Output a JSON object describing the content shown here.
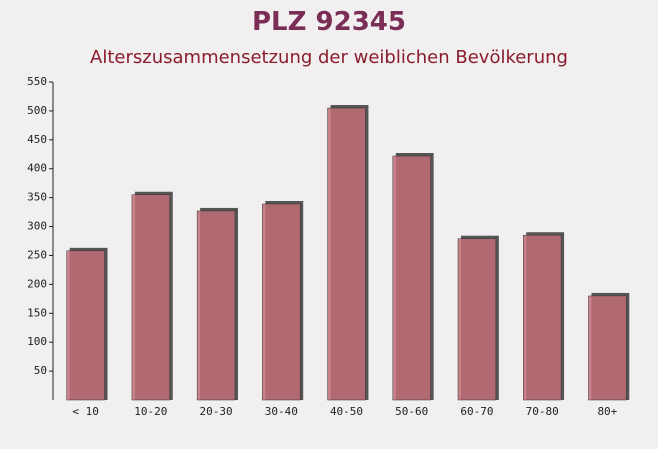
{
  "chart_data": {
    "type": "bar",
    "title": "PLZ 92345",
    "subtitle": "Alterszusammensetzung der weiblichen Bevölkerung",
    "categories": [
      "< 10",
      "10-20",
      "20-30",
      "30-40",
      "40-50",
      "50-60",
      "60-70",
      "70-80",
      "80+"
    ],
    "values": [
      258,
      355,
      327,
      339,
      505,
      422,
      279,
      285,
      180
    ],
    "color": "#c26d78",
    "ylim": [
      0,
      550
    ],
    "yticks": [
      50,
      100,
      150,
      200,
      250,
      300,
      350,
      400,
      450,
      500,
      550
    ]
  }
}
